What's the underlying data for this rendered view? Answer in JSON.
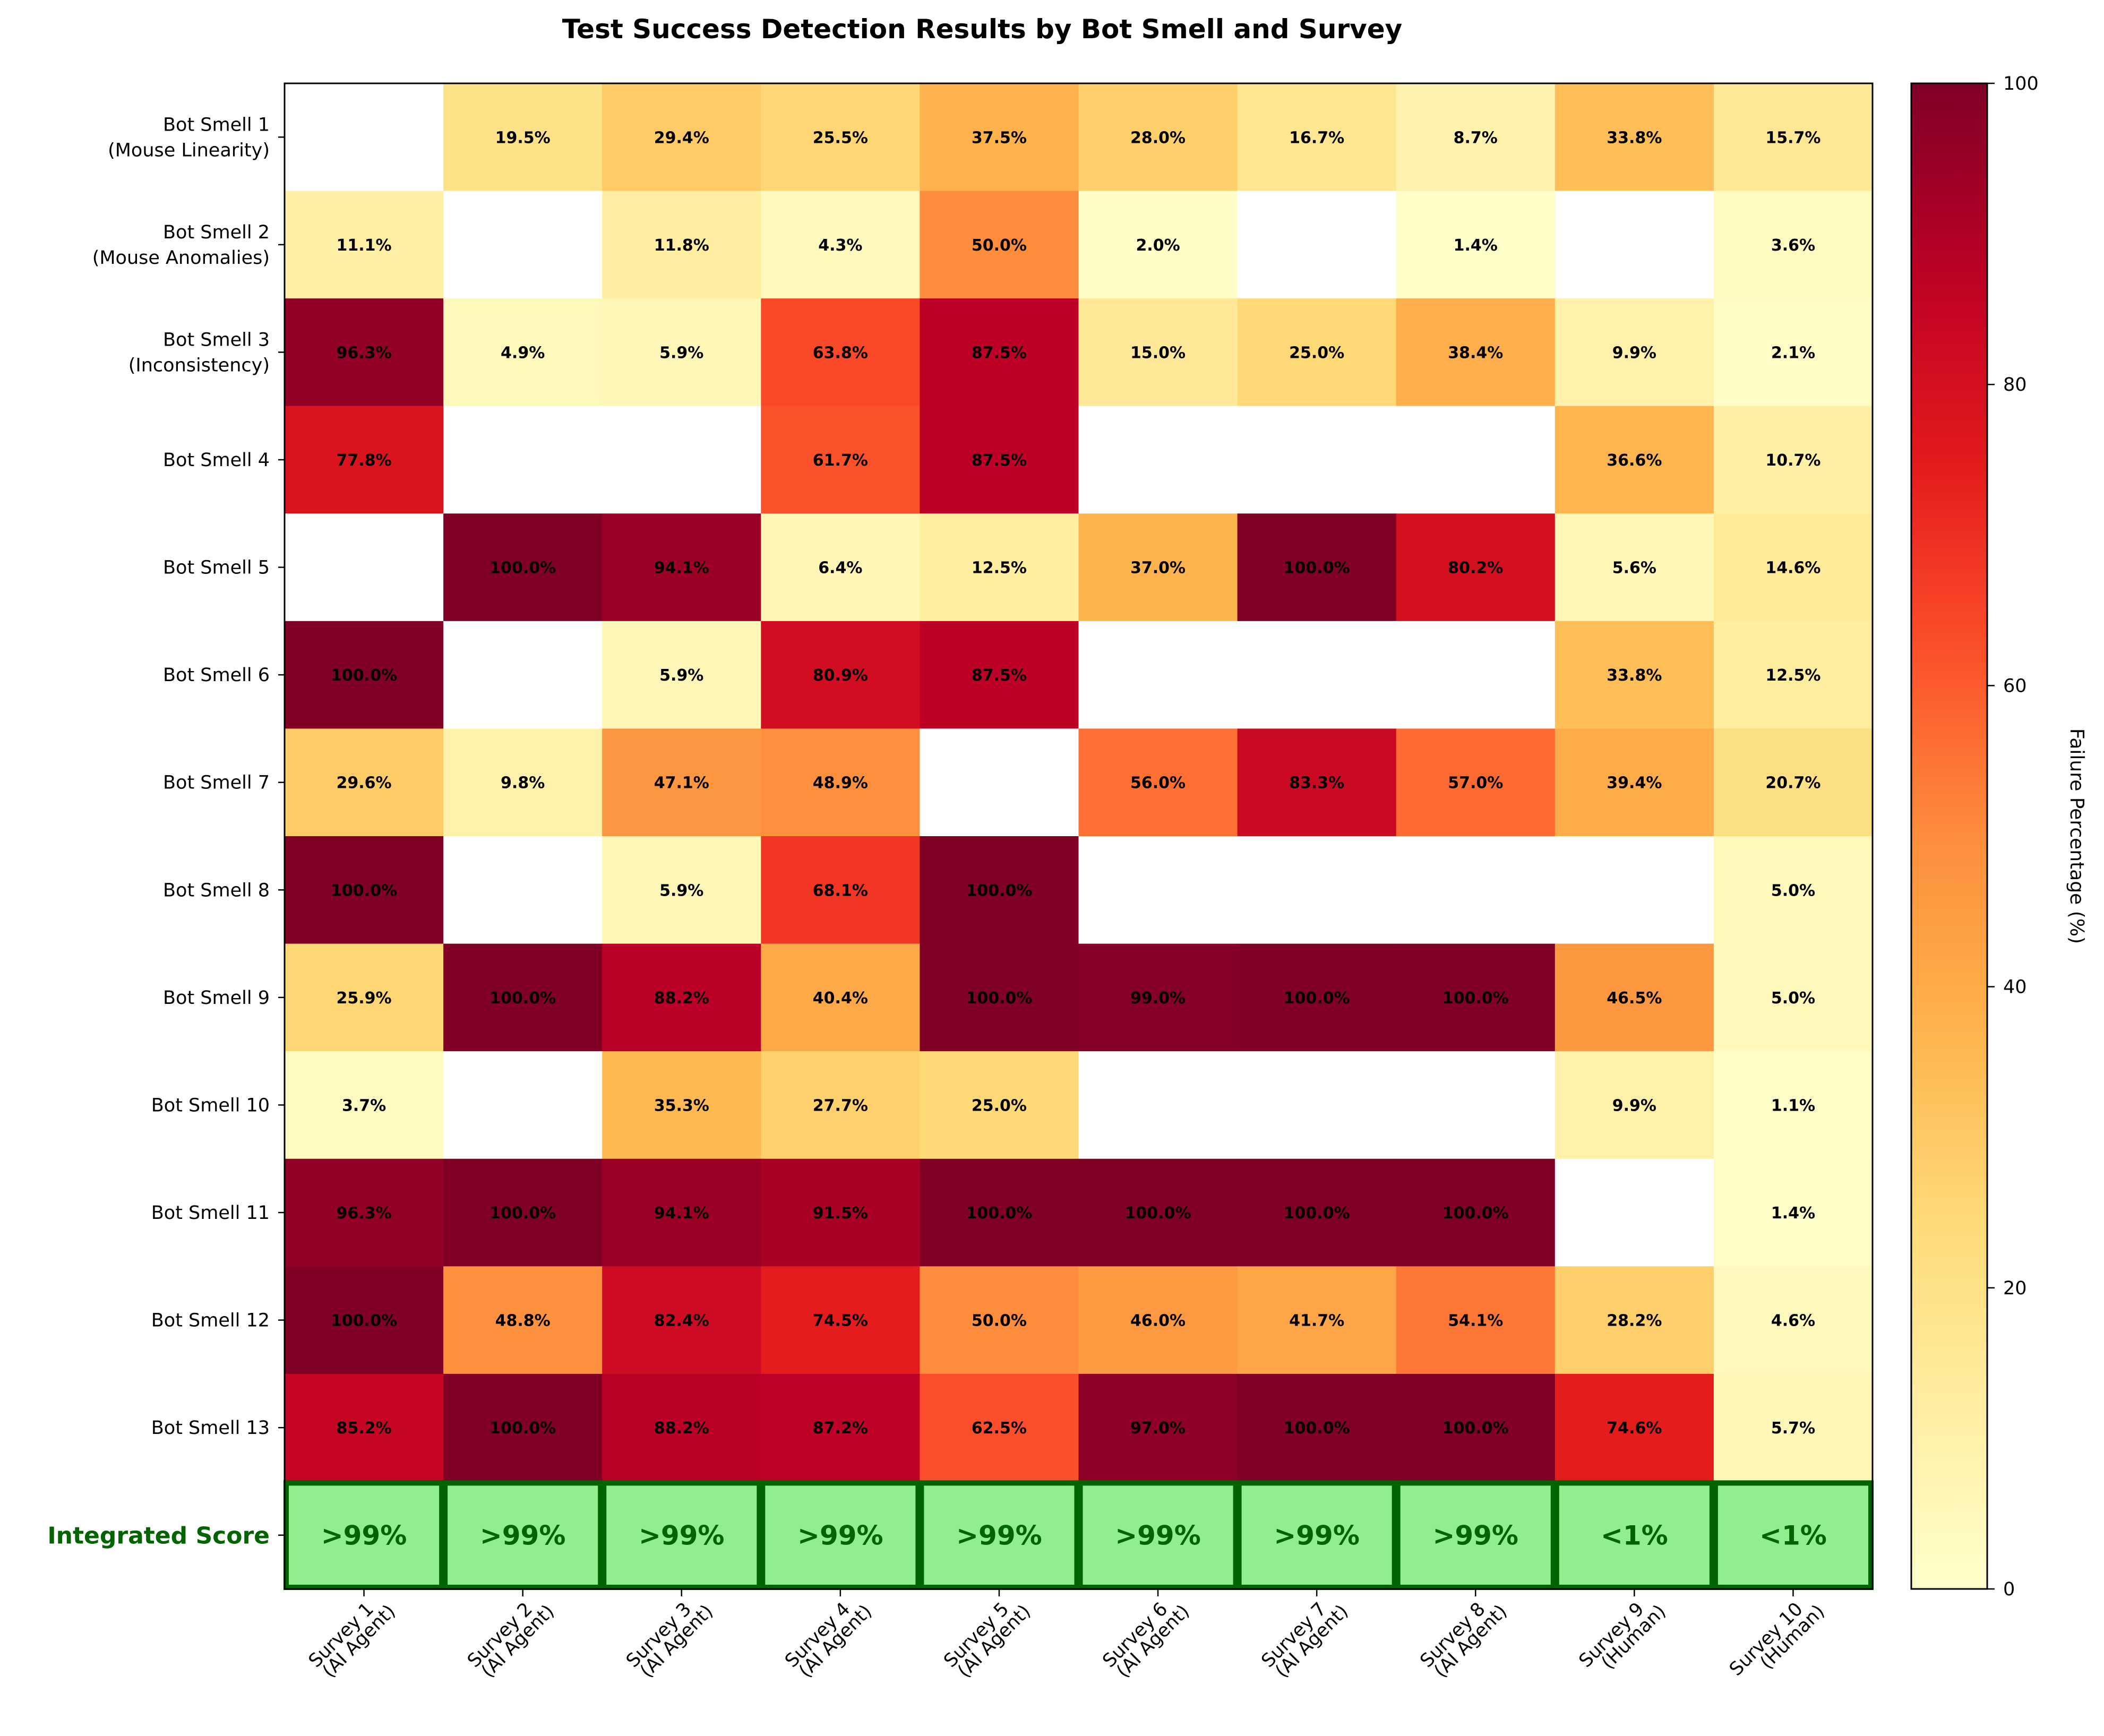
{
  "chart_data": {
    "type": "heatmap",
    "title": "Test Success Detection Results by Bot Smell and Survey",
    "rows": [
      [
        "Bot Smell 1",
        "(Mouse Linearity)"
      ],
      [
        "Bot Smell 2",
        "(Mouse Anomalies)"
      ],
      [
        "Bot Smell 3",
        "(Inconsistency)"
      ],
      [
        "Bot Smell 4"
      ],
      [
        "Bot Smell 5"
      ],
      [
        "Bot Smell 6"
      ],
      [
        "Bot Smell 7"
      ],
      [
        "Bot Smell 8"
      ],
      [
        "Bot Smell 9"
      ],
      [
        "Bot Smell 10"
      ],
      [
        "Bot Smell 11"
      ],
      [
        "Bot Smell 12"
      ],
      [
        "Bot Smell 13"
      ]
    ],
    "columns": [
      [
        "Survey 1",
        "(AI Agent)"
      ],
      [
        "Survey 2",
        "(AI Agent)"
      ],
      [
        "Survey 3",
        "(AI Agent)"
      ],
      [
        "Survey 4",
        "(AI Agent)"
      ],
      [
        "Survey 5",
        "(AI Agent)"
      ],
      [
        "Survey 6",
        "(AI Agent)"
      ],
      [
        "Survey 7",
        "(AI Agent)"
      ],
      [
        "Survey 8",
        "(AI Agent)"
      ],
      [
        "Survey 9",
        "(Human)"
      ],
      [
        "Survey 10",
        "(Human)"
      ]
    ],
    "values": [
      [
        null,
        19.5,
        29.4,
        25.5,
        37.5,
        28.0,
        16.7,
        8.7,
        33.8,
        15.7
      ],
      [
        11.1,
        null,
        11.8,
        4.3,
        50.0,
        2.0,
        null,
        1.4,
        null,
        3.6
      ],
      [
        96.3,
        4.9,
        5.9,
        63.8,
        87.5,
        15.0,
        25.0,
        38.4,
        9.9,
        2.1
      ],
      [
        77.8,
        null,
        null,
        61.7,
        87.5,
        null,
        null,
        null,
        36.6,
        10.7
      ],
      [
        null,
        100.0,
        94.1,
        6.4,
        12.5,
        37.0,
        100.0,
        80.2,
        5.6,
        14.6
      ],
      [
        100.0,
        null,
        5.9,
        80.9,
        87.5,
        null,
        null,
        null,
        33.8,
        12.5
      ],
      [
        29.6,
        9.8,
        47.1,
        48.9,
        null,
        56.0,
        83.3,
        57.0,
        39.4,
        20.7
      ],
      [
        100.0,
        null,
        5.9,
        68.1,
        100.0,
        null,
        null,
        null,
        null,
        5.0
      ],
      [
        25.9,
        100.0,
        88.2,
        40.4,
        100.0,
        99.0,
        100.0,
        100.0,
        46.5,
        5.0
      ],
      [
        3.7,
        null,
        35.3,
        27.7,
        25.0,
        null,
        null,
        null,
        9.9,
        1.1
      ],
      [
        96.3,
        100.0,
        94.1,
        91.5,
        100.0,
        100.0,
        100.0,
        100.0,
        null,
        1.4
      ],
      [
        100.0,
        48.8,
        82.4,
        74.5,
        50.0,
        46.0,
        41.7,
        54.1,
        28.2,
        4.6
      ],
      [
        85.2,
        100.0,
        88.2,
        87.2,
        62.5,
        97.0,
        100.0,
        100.0,
        74.6,
        5.7
      ]
    ],
    "integrated_row": {
      "label": "Integrated Score",
      "values": [
        ">99%",
        ">99%",
        ">99%",
        ">99%",
        ">99%",
        ">99%",
        ">99%",
        ">99%",
        "<1%",
        "<1%"
      ],
      "fill_color": "#90EE90",
      "border_color": "#006400",
      "text_color": "#006400"
    },
    "colormap": "YlOrRd",
    "colorbar": {
      "label": "Failure Percentage (%)",
      "range": [
        0,
        100
      ],
      "ticks": [
        0,
        20,
        40,
        60,
        80,
        100
      ]
    },
    "missing_color": "#ffffff"
  }
}
